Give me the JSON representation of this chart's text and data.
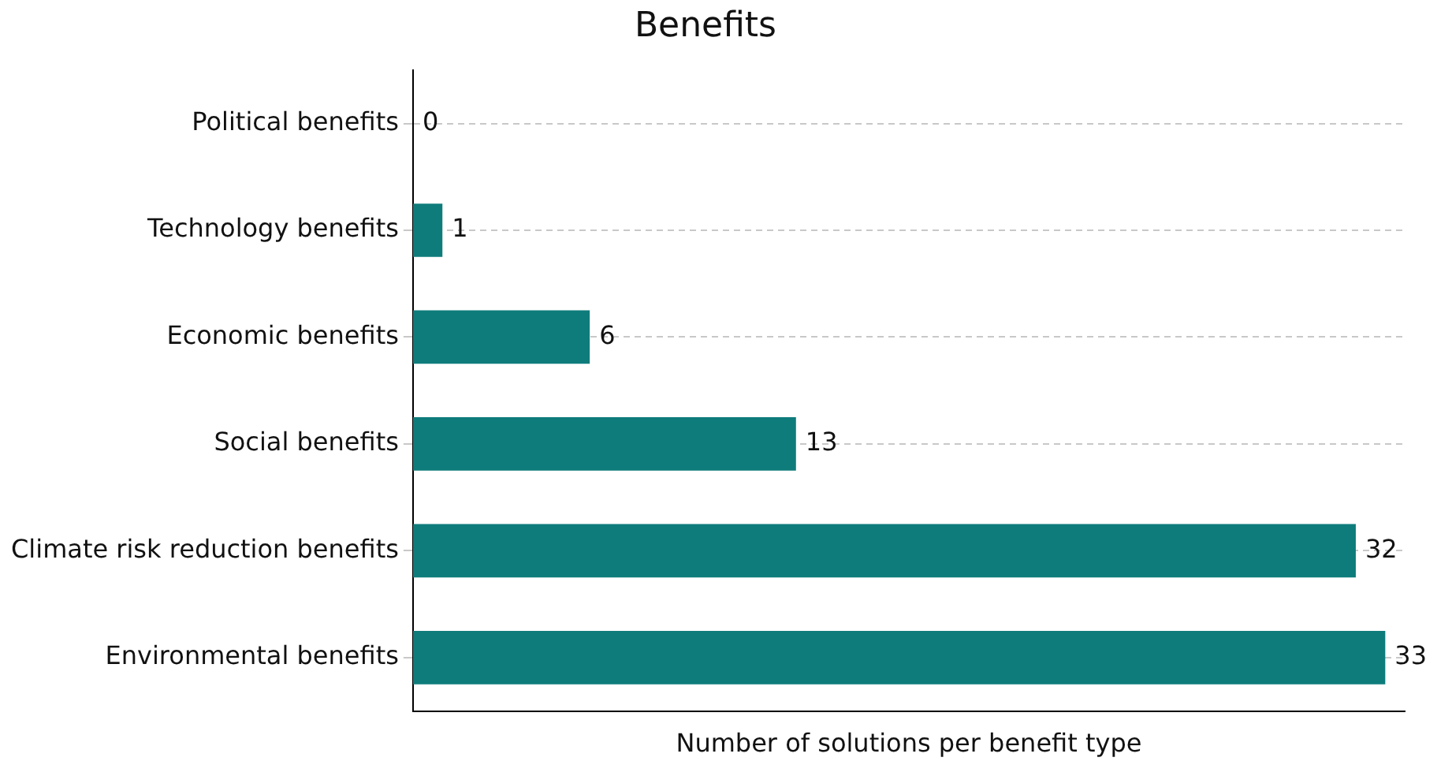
{
  "chart_data": {
    "type": "bar",
    "orientation": "horizontal",
    "title": "Benefits",
    "xlabel": "Number of solutions per benefit type",
    "categories": [
      "Political benefits",
      "Technology benefits",
      "Economic benefits",
      "Social benefits",
      "Climate risk reduction benefits",
      "Environmental benefits"
    ],
    "values": [
      0,
      1,
      6,
      13,
      32,
      33
    ],
    "color": "#0e7c7b",
    "data_labels": true,
    "grid": "y",
    "line_style": "dashed",
    "tick_labels": "y",
    "legend": false
  }
}
